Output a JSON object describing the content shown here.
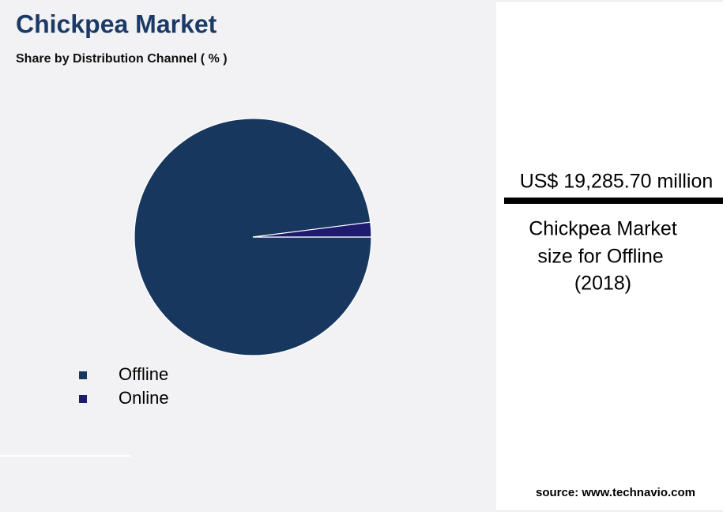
{
  "chart_data": {
    "type": "pie",
    "title": "Chickpea Market",
    "subtitle": "Share by Distribution Channel ( % )",
    "categories": [
      "Offline",
      "Online"
    ],
    "values": [
      98,
      2
    ],
    "colors": [
      "#17375e",
      "#1d1a6f"
    ]
  },
  "highlight": {
    "value": "US$ 19,285.70 million",
    "caption": [
      "Chickpea Market",
      "size for Offline",
      "(2018)"
    ]
  },
  "source": "source: www.technavio.com"
}
